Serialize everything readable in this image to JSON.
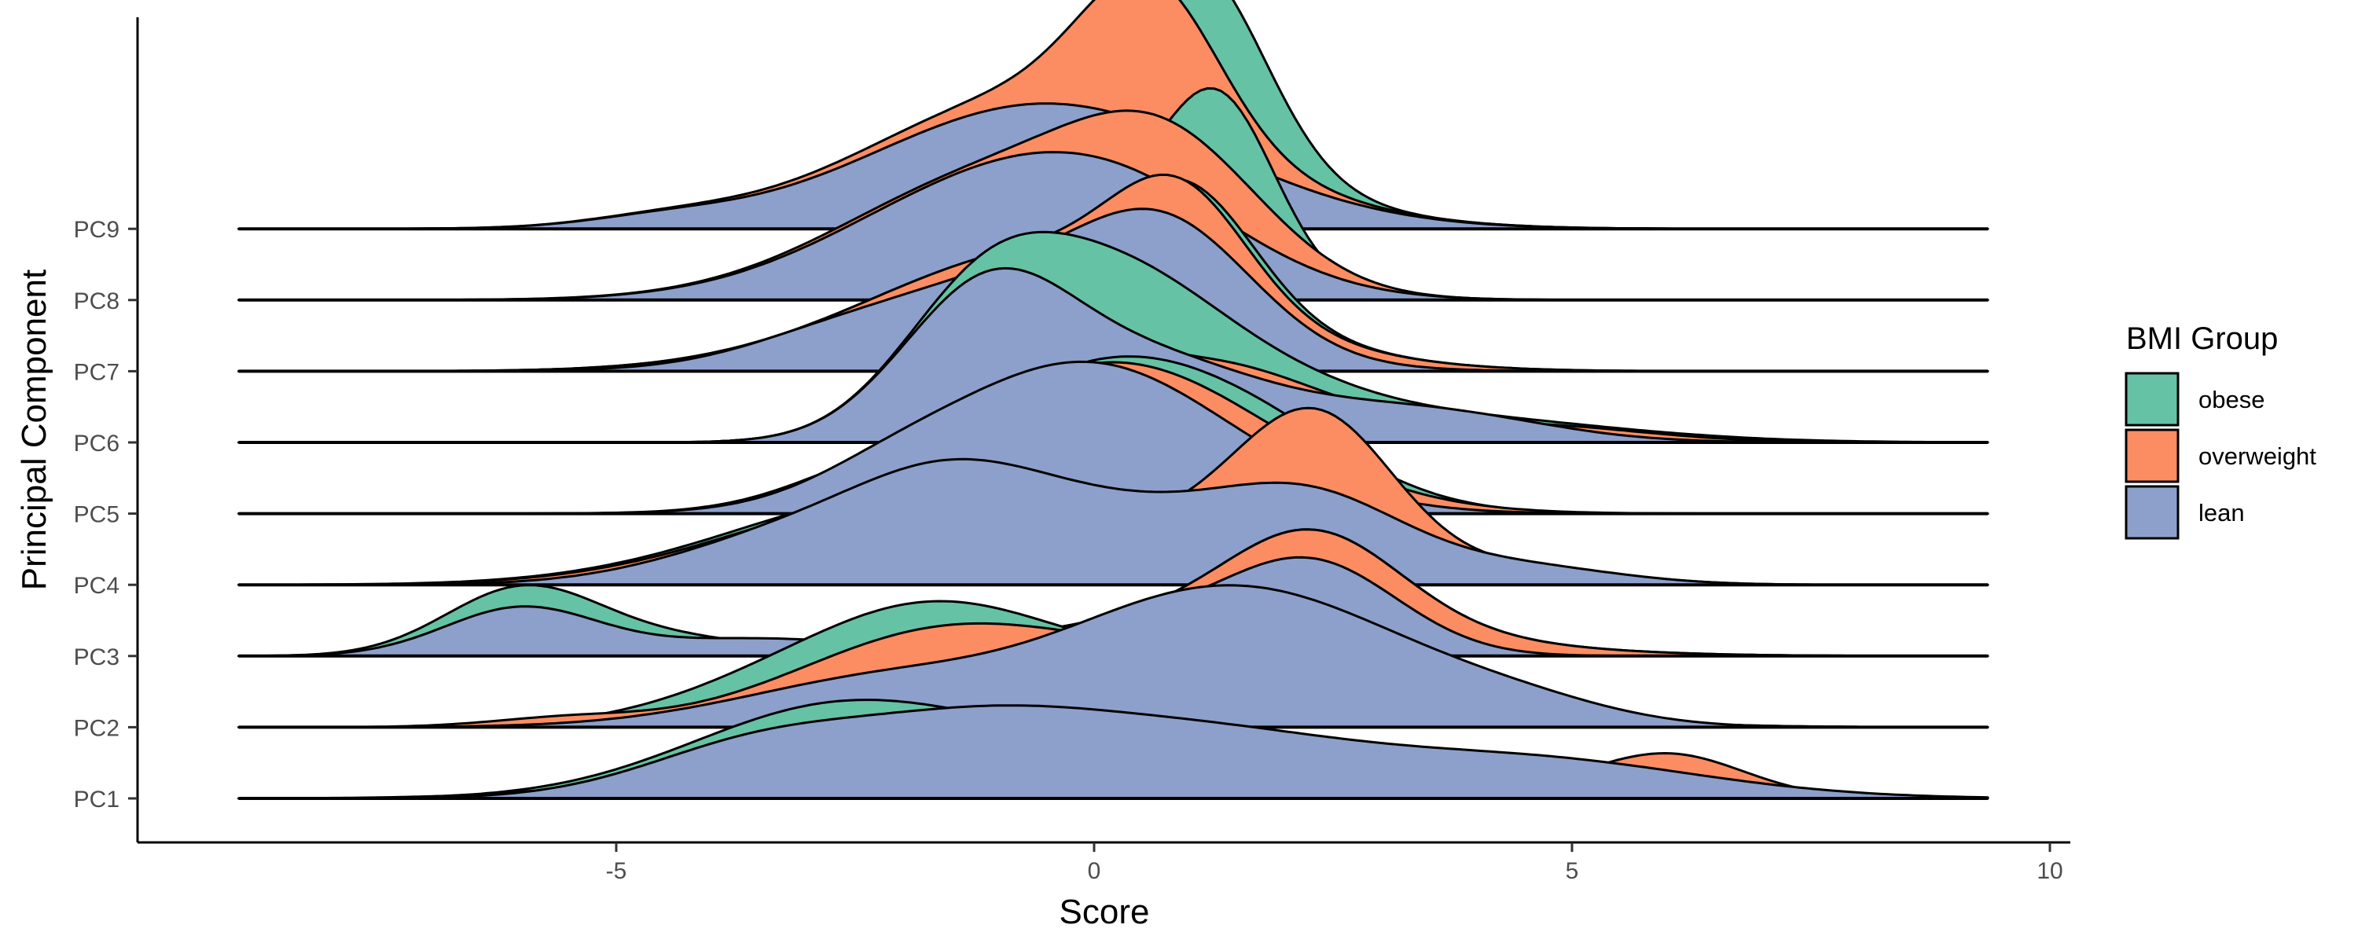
{
  "chart_data": {
    "type": "area",
    "subtype": "ridgeline",
    "title": "",
    "xlabel": "Score",
    "ylabel": "Principal Component",
    "xlim": [
      -9.2,
      10
    ],
    "x_ticks": [
      -5,
      0,
      5,
      10
    ],
    "x_tick_labels": [
      "-5",
      "0",
      "5",
      "10"
    ],
    "categories": [
      "PC1",
      "PC2",
      "PC3",
      "PC4",
      "PC5",
      "PC6",
      "PC7",
      "PC8",
      "PC9"
    ],
    "grid": false,
    "legend": {
      "title": "BMI Group",
      "position": "right",
      "entries": [
        {
          "name": "obese",
          "color": "#66C2A5"
        },
        {
          "name": "overweight",
          "color": "#FC8D62"
        },
        {
          "name": "lean",
          "color": "#8DA0CB"
        }
      ]
    },
    "series": [
      {
        "name": "obese",
        "color": "#66C2A5",
        "ridges": [
          {
            "pc": "PC1",
            "peaks": [
              [
                -2.8,
                0.95,
                1.5
              ],
              [
                -0.5,
                0.3,
                1.5
              ],
              [
                1.5,
                0.3,
                2.5
              ]
            ]
          },
          {
            "pc": "PC2",
            "peaks": [
              [
                -1.7,
                1.15,
                1.3
              ],
              [
                -3.5,
                0.3,
                1.2
              ],
              [
                1.5,
                0.75,
                2.0
              ]
            ]
          },
          {
            "pc": "PC3",
            "peaks": [
              [
                -6.0,
                0.75,
                0.8
              ],
              [
                -4.5,
                0.2,
                1.0
              ],
              [
                1.5,
                0.5,
                2.0
              ],
              [
                2.3,
                1.0,
                0.9
              ]
            ]
          },
          {
            "pc": "PC4",
            "peaks": [
              [
                -2.0,
                1.0,
                1.8
              ],
              [
                0.5,
                0.3,
                1.5
              ],
              [
                2.3,
                1.0,
                0.9
              ]
            ]
          },
          {
            "pc": "PC5",
            "peaks": [
              [
                0.2,
                1.75,
                1.5
              ],
              [
                2.0,
                0.3,
                1.0
              ]
            ]
          },
          {
            "pc": "PC6",
            "peaks": [
              [
                -1.1,
                1.8,
                0.9
              ],
              [
                0.3,
                1.0,
                0.9
              ],
              [
                1.2,
                0.8,
                1.2
              ],
              [
                3.5,
                0.3,
                1.8
              ]
            ]
          },
          {
            "pc": "PC7",
            "peaks": [
              [
                -0.5,
                1.4,
                1.8
              ],
              [
                1.0,
                1.2,
                0.7
              ]
            ]
          },
          {
            "pc": "PC8",
            "peaks": [
              [
                -1.0,
                1.4,
                1.5
              ],
              [
                1.3,
                2.0,
                0.6
              ]
            ]
          },
          {
            "pc": "PC9",
            "peaks": [
              [
                -0.5,
                1.6,
                1.8
              ],
              [
                1.1,
                2.0,
                0.7
              ]
            ]
          }
        ]
      },
      {
        "name": "overweight",
        "color": "#FC8D62",
        "ridges": [
          {
            "pc": "PC1",
            "peaks": [
              [
                -2.5,
                0.5,
                1.8
              ],
              [
                1.0,
                0.5,
                2.0
              ],
              [
                6.0,
                0.5,
                0.8
              ]
            ]
          },
          {
            "pc": "PC2",
            "peaks": [
              [
                -1.7,
                0.95,
                1.5
              ],
              [
                -5.5,
                0.1,
                0.8
              ],
              [
                1.5,
                0.75,
                2.0
              ]
            ]
          },
          {
            "pc": "PC3",
            "peaks": [
              [
                -6.0,
                0.5,
                0.8
              ],
              [
                1.5,
                0.5,
                2.0
              ],
              [
                2.3,
                1.0,
                0.9
              ]
            ]
          },
          {
            "pc": "PC4",
            "peaks": [
              [
                -1.9,
                1.0,
                1.8
              ],
              [
                1.6,
                0.6,
                1.0
              ],
              [
                2.4,
                1.5,
                0.8
              ],
              [
                4.5,
                0.2,
                1.0
              ]
            ]
          },
          {
            "pc": "PC5",
            "peaks": [
              [
                0.2,
                1.75,
                1.6
              ],
              [
                -2.5,
                0.2,
                0.8
              ]
            ]
          },
          {
            "pc": "PC6",
            "peaks": [
              [
                -1.1,
                1.8,
                0.9
              ],
              [
                1.2,
                0.9,
                1.2
              ],
              [
                4.5,
                0.2,
                1.2
              ]
            ]
          },
          {
            "pc": "PC7",
            "peaks": [
              [
                -0.5,
                1.4,
                1.8
              ],
              [
                0.9,
                1.2,
                0.7
              ]
            ]
          },
          {
            "pc": "PC8",
            "peaks": [
              [
                -1.0,
                1.45,
                1.6
              ],
              [
                0.8,
                1.3,
                1.0
              ]
            ]
          },
          {
            "pc": "PC9",
            "peaks": [
              [
                -0.5,
                1.6,
                1.8
              ],
              [
                0.6,
                1.6,
                0.7
              ],
              [
                -4.5,
                0.1,
                0.8
              ]
            ]
          }
        ]
      },
      {
        "name": "lean",
        "color": "#8DA0CB",
        "ridges": [
          {
            "pc": "PC1",
            "peaks": [
              [
                -3.5,
                0.6,
                1.2
              ],
              [
                -1.3,
                0.7,
                1.3
              ],
              [
                1.0,
                0.7,
                1.6
              ],
              [
                4.5,
                0.45,
                1.8
              ]
            ]
          },
          {
            "pc": "PC2",
            "peaks": [
              [
                -2.0,
                0.6,
                1.6
              ],
              [
                0.5,
                0.5,
                1.2
              ],
              [
                2.0,
                1.3,
                1.5
              ],
              [
                4.5,
                0.2,
                1.0
              ]
            ]
          },
          {
            "pc": "PC3",
            "peaks": [
              [
                -6.0,
                0.55,
                0.8
              ],
              [
                -3.5,
                0.2,
                1.2
              ],
              [
                0.5,
                0.4,
                1.2
              ],
              [
                2.3,
                1.0,
                0.9
              ]
            ]
          },
          {
            "pc": "PC4",
            "peaks": [
              [
                -3.0,
                0.6,
                1.3
              ],
              [
                -1.5,
                0.8,
                1.0
              ],
              [
                0.2,
                0.8,
                1.3
              ],
              [
                2.3,
                0.9,
                1.0
              ],
              [
                4.5,
                0.2,
                1.0
              ]
            ]
          },
          {
            "pc": "PC5",
            "peaks": [
              [
                -0.1,
                1.75,
                1.5
              ],
              [
                -2.2,
                0.2,
                0.8
              ]
            ]
          },
          {
            "pc": "PC6",
            "peaks": [
              [
                -1.1,
                1.8,
                0.9
              ],
              [
                0.6,
                0.7,
                1.0
              ],
              [
                2.5,
                0.4,
                1.5
              ],
              [
                4.0,
                0.1,
                1.0
              ]
            ]
          },
          {
            "pc": "PC7",
            "peaks": [
              [
                -0.8,
                1.1,
                1.6
              ],
              [
                0.8,
                1.15,
                0.9
              ],
              [
                -3.0,
                0.1,
                0.8
              ]
            ]
          },
          {
            "pc": "PC8",
            "peaks": [
              [
                -1.0,
                1.35,
                1.6
              ],
              [
                0.5,
                0.6,
                1.2
              ]
            ]
          },
          {
            "pc": "PC9",
            "peaks": [
              [
                -0.5,
                1.45,
                1.8
              ],
              [
                -4.5,
                0.1,
                0.8
              ]
            ]
          }
        ]
      }
    ]
  }
}
